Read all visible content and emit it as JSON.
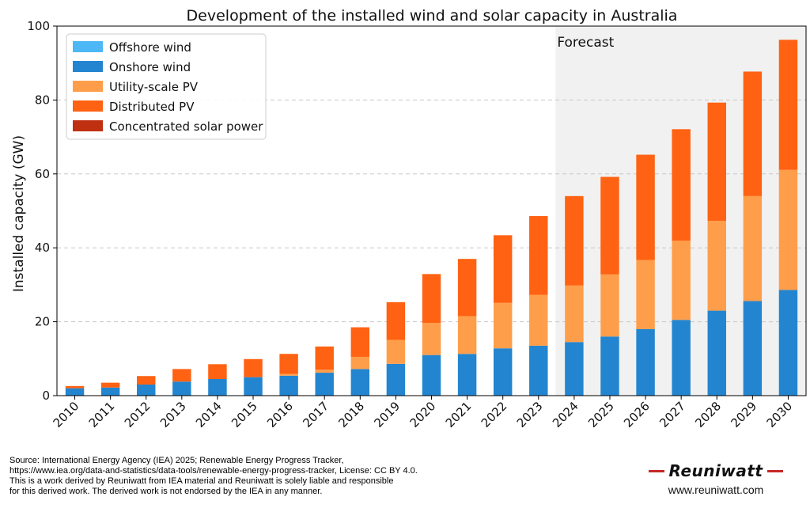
{
  "chart_data": {
    "type": "bar",
    "stacked": true,
    "title": "Development of the installed wind and solar capacity in Australia",
    "xlabel": "",
    "ylabel": "Installed capacity (GW)",
    "ylim": [
      0,
      100
    ],
    "yticks": [
      0,
      20,
      40,
      60,
      80,
      100
    ],
    "grid": "horizontal-dashed",
    "legend_position": "top-left",
    "forecast_label": "Forecast",
    "forecast_start": "2024",
    "categories": [
      "2010",
      "2011",
      "2012",
      "2013",
      "2014",
      "2015",
      "2016",
      "2017",
      "2018",
      "2019",
      "2020",
      "2021",
      "2022",
      "2023",
      "2024",
      "2025",
      "2026",
      "2027",
      "2028",
      "2029",
      "2030"
    ],
    "series": [
      {
        "name": "Offshore wind",
        "color": "#4db8f5",
        "values": [
          0,
          0,
          0,
          0,
          0,
          0,
          0,
          0,
          0,
          0,
          0,
          0,
          0,
          0,
          0,
          0,
          0,
          0,
          0,
          0,
          0
        ]
      },
      {
        "name": "Onshore wind",
        "color": "#2385d0",
        "values": [
          2.0,
          2.2,
          3.0,
          3.8,
          4.5,
          5.0,
          5.4,
          6.2,
          7.2,
          8.6,
          11.0,
          11.3,
          12.8,
          13.5,
          14.5,
          16.0,
          18.0,
          20.5,
          23.0,
          25.6,
          28.6
        ]
      },
      {
        "name": "Utility-scale PV",
        "color": "#ff9e4a",
        "values": [
          0,
          0,
          0,
          0,
          0,
          0,
          0.5,
          0.8,
          3.3,
          6.5,
          8.7,
          10.2,
          12.3,
          13.8,
          15.3,
          16.8,
          18.7,
          21.4,
          24.3,
          28.4,
          32.5
        ]
      },
      {
        "name": "Distributed PV",
        "color": "#ff6212",
        "values": [
          0.6,
          1.3,
          2.3,
          3.4,
          4.0,
          4.9,
          5.4,
          6.3,
          8.0,
          10.2,
          13.2,
          15.5,
          18.3,
          21.3,
          24.2,
          26.4,
          28.5,
          30.2,
          32.0,
          33.7,
          35.2
        ]
      },
      {
        "name": "Concentrated solar power",
        "color": "#bf3011",
        "values": [
          0,
          0,
          0,
          0,
          0,
          0,
          0,
          0,
          0,
          0,
          0,
          0,
          0,
          0,
          0,
          0,
          0,
          0,
          0,
          0,
          0
        ]
      }
    ]
  },
  "footer": {
    "source_lines": [
      "Source: International Energy Agency (IEA) 2025; Renewable Energy Progress Tracker,",
      "https://www.iea.org/data-and-statistics/data-tools/renewable-energy-progress-tracker, License: CC BY 4.0.",
      "This is a work derived by Reuniwatt from IEA material and Reuniwatt is solely liable and responsible",
      "for this derived work. The derived work is not endorsed by the IEA in any manner."
    ],
    "brand_name": "Reuniwatt",
    "brand_url": "www.reuniwatt.com"
  }
}
